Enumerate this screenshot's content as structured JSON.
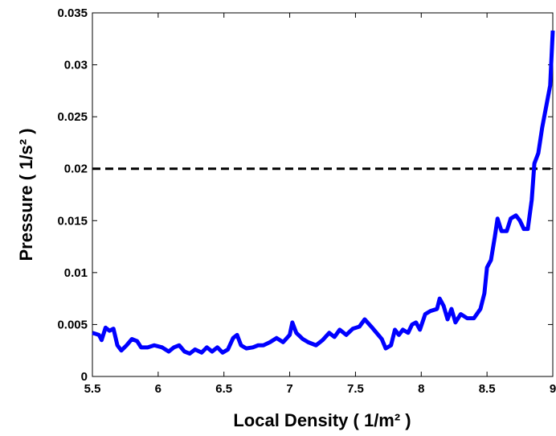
{
  "chart_data": {
    "type": "line",
    "xlabel": "Local Density ( 1/m² )",
    "ylabel": "Pressure ( 1/s² )",
    "xlim": [
      5.5,
      9
    ],
    "ylim": [
      0,
      0.035
    ],
    "xticks": [
      5.5,
      6,
      6.5,
      7,
      7.5,
      8,
      8.5,
      9
    ],
    "yticks": [
      0,
      0.005,
      0.01,
      0.015,
      0.02,
      0.025,
      0.03,
      0.035
    ],
    "hline": 0.02,
    "series": [
      {
        "color": "#0000ff",
        "x": [
          5.5,
          5.55,
          5.57,
          5.6,
          5.63,
          5.66,
          5.69,
          5.72,
          5.76,
          5.8,
          5.84,
          5.87,
          5.92,
          5.97,
          6.03,
          6.08,
          6.12,
          6.16,
          6.2,
          6.24,
          6.28,
          6.33,
          6.37,
          6.41,
          6.45,
          6.49,
          6.53,
          6.57,
          6.6,
          6.63,
          6.67,
          6.72,
          6.76,
          6.8,
          6.85,
          6.9,
          6.95,
          7.0,
          7.02,
          7.05,
          7.1,
          7.14,
          7.2,
          7.25,
          7.3,
          7.34,
          7.38,
          7.43,
          7.48,
          7.53,
          7.57,
          7.62,
          7.66,
          7.7,
          7.73,
          7.77,
          7.8,
          7.83,
          7.86,
          7.9,
          7.93,
          7.96,
          7.99,
          8.03,
          8.07,
          8.12,
          8.14,
          8.17,
          8.2,
          8.23,
          8.26,
          8.3,
          8.35,
          8.4,
          8.45,
          8.48,
          8.5,
          8.53,
          8.56,
          8.58,
          8.61,
          8.65,
          8.68,
          8.72,
          8.75,
          8.78,
          8.81,
          8.84,
          8.86,
          8.89,
          8.92,
          8.95,
          8.98,
          9.0
        ],
        "values": [
          0.0042,
          0.004,
          0.0035,
          0.0047,
          0.0044,
          0.0046,
          0.003,
          0.0025,
          0.003,
          0.0036,
          0.0034,
          0.0028,
          0.0028,
          0.003,
          0.0028,
          0.0024,
          0.0028,
          0.003,
          0.0024,
          0.0022,
          0.0026,
          0.0023,
          0.0028,
          0.0024,
          0.0028,
          0.0023,
          0.0026,
          0.0037,
          0.004,
          0.003,
          0.0027,
          0.0028,
          0.003,
          0.003,
          0.0033,
          0.0037,
          0.0033,
          0.004,
          0.0052,
          0.0042,
          0.0036,
          0.0033,
          0.003,
          0.0035,
          0.0042,
          0.0038,
          0.0045,
          0.004,
          0.0046,
          0.0048,
          0.0055,
          0.0048,
          0.0042,
          0.0036,
          0.0027,
          0.003,
          0.0045,
          0.004,
          0.0045,
          0.0042,
          0.005,
          0.0052,
          0.0045,
          0.006,
          0.0063,
          0.0065,
          0.0075,
          0.0068,
          0.0055,
          0.0065,
          0.0052,
          0.006,
          0.0056,
          0.0056,
          0.0065,
          0.008,
          0.0105,
          0.0112,
          0.0135,
          0.0152,
          0.014,
          0.014,
          0.0152,
          0.0155,
          0.015,
          0.0142,
          0.0142,
          0.017,
          0.0205,
          0.0215,
          0.024,
          0.026,
          0.028,
          0.0333
        ]
      }
    ]
  }
}
